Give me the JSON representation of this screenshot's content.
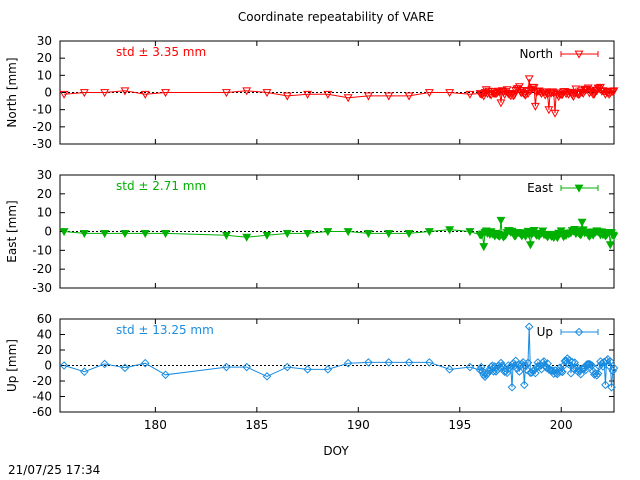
{
  "chart_data": {
    "type": "line",
    "title": "Coordinate repeatability of VARE",
    "xlabel": "DOY",
    "xlim": [
      175.3,
      202.6
    ],
    "xticks": [
      180,
      185,
      190,
      195,
      200
    ],
    "footer_timestamp": "21/07/25 17:34",
    "panels": [
      {
        "name": "North",
        "ylabel": "North [mm]",
        "ylim": [
          -30,
          30
        ],
        "yticks": [
          -30,
          -20,
          -10,
          0,
          10,
          20,
          30
        ],
        "std_label": "std ± 3.35 mm",
        "legend_label": "North",
        "legend_position": "top-right",
        "color": "#ff0000",
        "marker": "triangle-down-open",
        "zero_line": true,
        "sparse": [
          [
            175.5,
            -1
          ],
          [
            176.5,
            0
          ],
          [
            177.5,
            0
          ],
          [
            178.5,
            1
          ],
          [
            179.5,
            -1
          ],
          [
            180.5,
            0
          ],
          [
            183.5,
            0
          ],
          [
            184.5,
            1
          ],
          [
            185.5,
            0
          ],
          [
            186.5,
            -2
          ],
          [
            187.5,
            -1
          ],
          [
            188.5,
            -1
          ],
          [
            189.5,
            -3
          ],
          [
            190.5,
            -2
          ],
          [
            191.5,
            -2
          ],
          [
            192.5,
            -2
          ],
          [
            193.5,
            0
          ],
          [
            194.5,
            0
          ],
          [
            195.5,
            -1
          ]
        ],
        "dense": {
          "start": 196.0,
          "end": 202.6,
          "count": 110,
          "amp": 3.5,
          "mean": 0.5,
          "seed": 11,
          "spikes": [
            [
              198.4,
              8
            ],
            [
              198.7,
              -8
            ],
            [
              199.4,
              -10
            ],
            [
              199.7,
              -12
            ],
            [
              197.0,
              -6
            ]
          ]
        }
      },
      {
        "name": "East",
        "ylabel": "East [mm]",
        "ylim": [
          -30,
          30
        ],
        "yticks": [
          -30,
          -20,
          -10,
          0,
          10,
          20,
          30
        ],
        "std_label": "std ± 2.71 mm",
        "legend_label": "East",
        "legend_position": "top-right",
        "color": "#00b000",
        "marker": "triangle-down-filled",
        "zero_line": true,
        "sparse": [
          [
            175.5,
            0
          ],
          [
            176.5,
            -1
          ],
          [
            177.5,
            -1
          ],
          [
            178.5,
            -1
          ],
          [
            179.5,
            -1
          ],
          [
            180.5,
            -1
          ],
          [
            183.5,
            -2
          ],
          [
            184.5,
            -3
          ],
          [
            185.5,
            -2
          ],
          [
            186.5,
            -1
          ],
          [
            187.5,
            -1
          ],
          [
            188.5,
            0
          ],
          [
            189.5,
            0
          ],
          [
            190.5,
            -1
          ],
          [
            191.5,
            -1
          ],
          [
            192.5,
            -1
          ],
          [
            193.5,
            0
          ],
          [
            194.5,
            1
          ],
          [
            195.5,
            0
          ]
        ],
        "dense": {
          "start": 196.0,
          "end": 202.6,
          "count": 110,
          "amp": 2.6,
          "mean": -1.0,
          "seed": 23,
          "spikes": [
            [
              196.2,
              -8
            ],
            [
              197.0,
              6
            ],
            [
              198.5,
              -7
            ],
            [
              201.0,
              5
            ],
            [
              202.4,
              -7
            ]
          ]
        }
      },
      {
        "name": "Up",
        "ylabel": "Up [mm]",
        "ylim": [
          -60,
          60
        ],
        "yticks": [
          -60,
          -40,
          -20,
          0,
          20,
          40,
          60
        ],
        "std_label": "std ± 13.25 mm",
        "legend_label": "Up",
        "legend_position": "top-right",
        "color": "#1a8ce0",
        "marker": "diamond-open",
        "zero_line": true,
        "sparse": [
          [
            175.5,
            0
          ],
          [
            176.5,
            -8
          ],
          [
            177.5,
            2
          ],
          [
            178.5,
            -3
          ],
          [
            179.5,
            3
          ],
          [
            180.5,
            -12
          ],
          [
            183.5,
            -2
          ],
          [
            184.5,
            -2
          ],
          [
            185.5,
            -14
          ],
          [
            186.5,
            -2
          ],
          [
            187.5,
            -5
          ],
          [
            188.5,
            -5
          ],
          [
            189.5,
            3
          ],
          [
            190.5,
            4
          ],
          [
            191.5,
            4
          ],
          [
            192.5,
            4
          ],
          [
            193.5,
            4
          ],
          [
            194.5,
            -5
          ],
          [
            195.5,
            -2
          ]
        ],
        "dense": {
          "start": 196.0,
          "end": 202.6,
          "count": 110,
          "amp": 13,
          "mean": -2,
          "seed": 37,
          "spikes": [
            [
              198.4,
              50
            ],
            [
              198.2,
              -25
            ],
            [
              197.6,
              -28
            ],
            [
              200.5,
              -10
            ],
            [
              202.5,
              -28
            ],
            [
              202.2,
              -25
            ]
          ]
        }
      }
    ]
  }
}
